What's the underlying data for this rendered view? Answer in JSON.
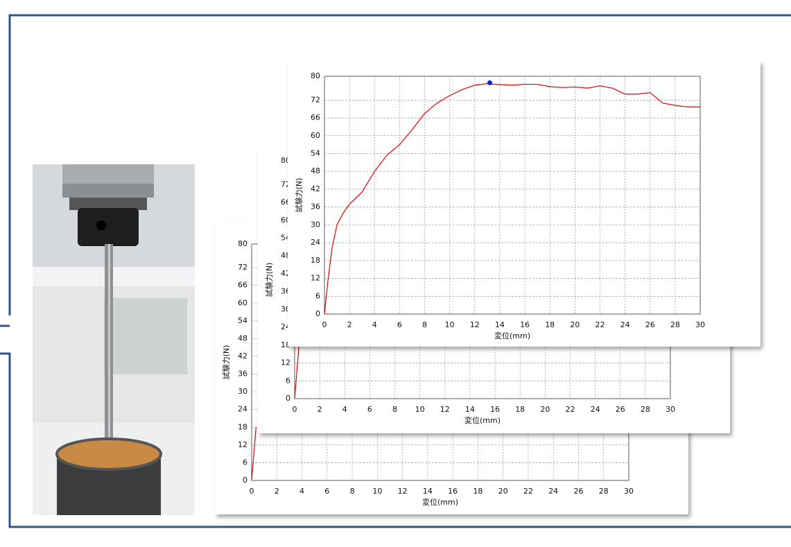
{
  "chart_data": [
    {
      "type": "line",
      "ylabel": "試験力(N)",
      "xlabel": "変位(mm)",
      "xlim": [
        0,
        30
      ],
      "xticks": [
        0,
        2,
        4,
        6,
        8,
        10,
        12,
        14,
        16,
        18,
        20,
        22,
        24,
        26,
        28,
        30
      ],
      "ylim": [
        0,
        80
      ],
      "yticks": [
        0,
        6,
        12,
        18,
        24,
        30,
        36,
        42,
        48,
        54,
        60,
        66,
        72,
        80
      ],
      "grid": true,
      "color": "#e00000",
      "x": [
        0,
        0.35
      ],
      "values": [
        0,
        18
      ]
    },
    {
      "type": "line",
      "ylabel": "試験力(N)",
      "xlabel": "変位(mm)",
      "xlim": [
        0,
        30
      ],
      "xticks": [
        0,
        2,
        4,
        6,
        8,
        10,
        12,
        14,
        16,
        18,
        20,
        22,
        24,
        26,
        28,
        30
      ],
      "ylim": [
        0,
        80
      ],
      "yticks": [
        0,
        6,
        12,
        18,
        24,
        30,
        36,
        42,
        48,
        54,
        60,
        66,
        72,
        80
      ],
      "grid": true,
      "color": "#e00000",
      "x": [
        0,
        0.35
      ],
      "values": [
        0,
        18
      ]
    },
    {
      "type": "line",
      "ylabel": "試験力(N)",
      "xlabel": "変位(mm)",
      "xlim": [
        0,
        30
      ],
      "xticks": [
        0,
        2,
        4,
        6,
        8,
        10,
        12,
        14,
        16,
        18,
        20,
        22,
        24,
        26,
        28,
        30
      ],
      "ylim": [
        0,
        80
      ],
      "yticks": [
        0,
        6,
        12,
        18,
        24,
        30,
        36,
        42,
        48,
        54,
        60,
        66,
        72,
        80
      ],
      "grid": true,
      "color": "#e00000",
      "x": [
        0,
        0.3,
        0.6,
        1,
        1.5,
        2,
        3,
        4,
        5,
        6,
        7,
        8,
        9,
        10,
        11,
        12,
        13,
        14,
        15,
        16,
        17,
        18,
        19,
        20,
        21,
        22,
        23,
        24,
        25,
        26,
        27,
        28,
        29,
        30
      ],
      "values": [
        0,
        12,
        22,
        30,
        34,
        37,
        41,
        48,
        53.5,
        57,
        62,
        67.5,
        71,
        73.5,
        75.5,
        77,
        77.5,
        77.2,
        77,
        77.3,
        77.3,
        76.5,
        76.2,
        76.4,
        76,
        76.8,
        76,
        74,
        74,
        74.5,
        71,
        70.2,
        69.7,
        69.7
      ],
      "peak_x": 13.2,
      "peak_y": 77.8,
      "peak_color": "#1020d0"
    }
  ]
}
